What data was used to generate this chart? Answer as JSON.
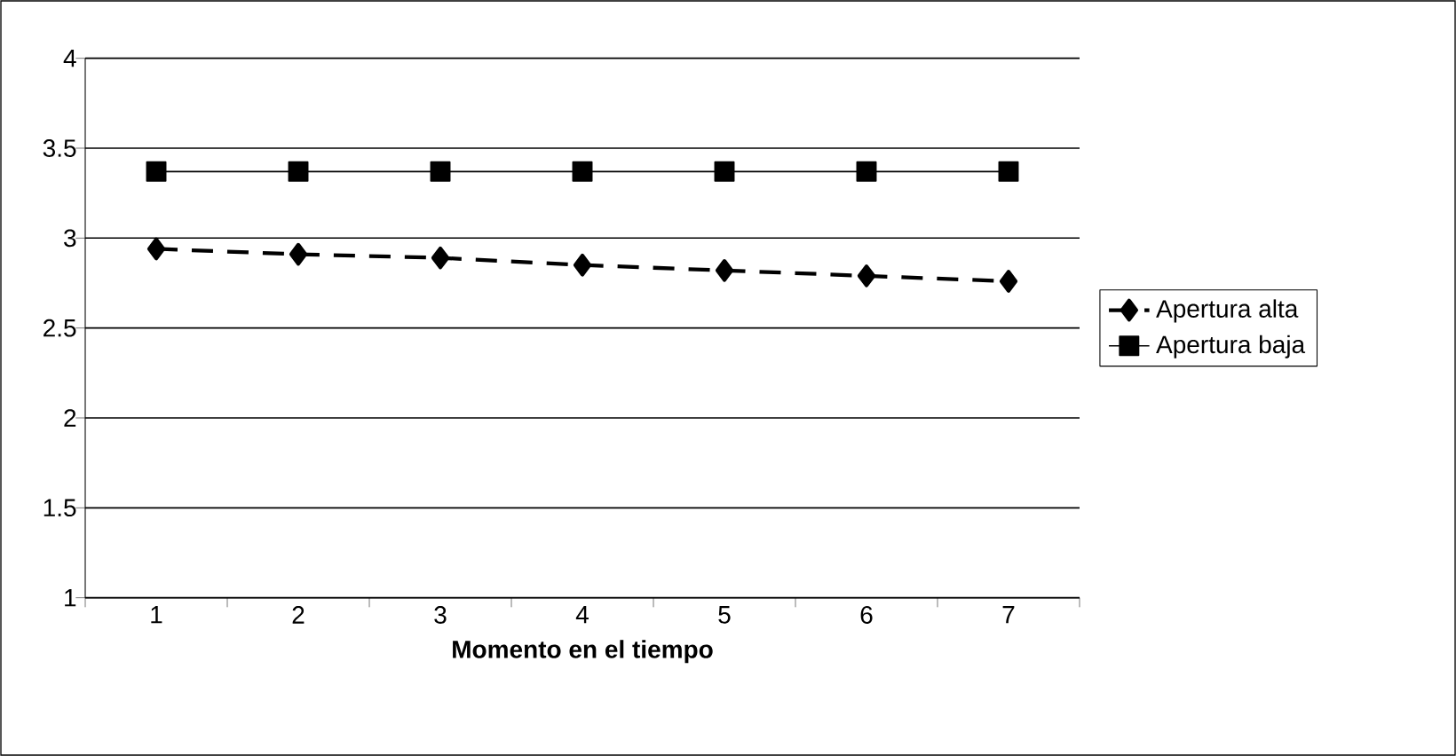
{
  "chart_data": {
    "type": "line",
    "xlabel": "Momento en el tiempo",
    "categories": [
      "1",
      "2",
      "3",
      "4",
      "5",
      "6",
      "7"
    ],
    "series": [
      {
        "name": "Apertura alta",
        "color": "#000000",
        "marker": "diamond",
        "line_style": "dashed",
        "values": [
          2.94,
          2.91,
          2.89,
          2.85,
          2.82,
          2.79,
          2.76
        ]
      },
      {
        "name": "Apertura baja",
        "color": "#000000",
        "marker": "square",
        "line_style": "solid",
        "values": [
          3.37,
          3.37,
          3.37,
          3.37,
          3.37,
          3.37,
          3.37
        ]
      }
    ],
    "ylim": [
      1,
      4
    ],
    "yticks": [
      1,
      1.5,
      2,
      2.5,
      3,
      3.5,
      4
    ],
    "grid": "y",
    "legend": "right"
  }
}
